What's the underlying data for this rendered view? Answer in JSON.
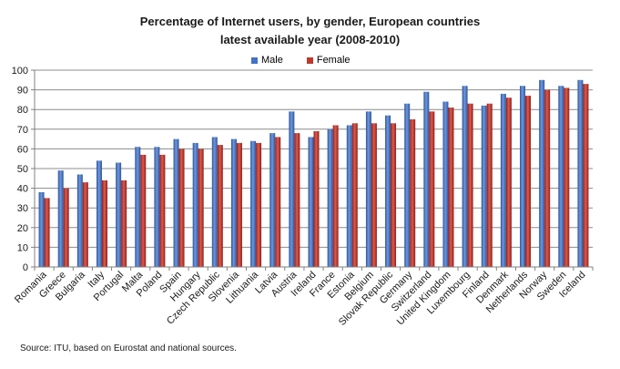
{
  "chart_data": {
    "type": "bar",
    "title_line1": "Percentage of Internet users, by gender, European countries",
    "title_line2": "latest available year (2008-2010)",
    "categories": [
      "Romania",
      "Greece",
      "Bulgaria",
      "Italy",
      "Portugal",
      "Malta",
      "Poland",
      "Spain",
      "Hungary",
      "Czech Republic",
      "Slovenia",
      "Lithuania",
      "Latvia",
      "Austria",
      "Ireland",
      "France",
      "Estonia",
      "Belgium",
      "Slovak Republic",
      "Germany",
      "Switzerland",
      "United Kingdom",
      "Luxembourg",
      "Finland",
      "Denmark",
      "Netherlands",
      "Norway",
      "Sweden",
      "Iceland"
    ],
    "series": [
      {
        "name": "Male",
        "color": "#4472c4",
        "values": [
          38,
          49,
          47,
          54,
          53,
          61,
          61,
          65,
          63,
          66,
          65,
          64,
          68,
          79,
          66,
          70,
          72,
          79,
          77,
          83,
          89,
          84,
          92,
          82,
          88,
          92,
          95,
          92,
          95
        ]
      },
      {
        "name": "Female",
        "color": "#c0392b",
        "values": [
          35,
          40,
          43,
          44,
          44,
          57,
          57,
          60,
          60,
          62,
          63,
          63,
          66,
          68,
          69,
          72,
          73,
          73,
          73,
          75,
          79,
          81,
          83,
          83,
          86,
          87,
          90,
          91,
          93
        ]
      }
    ],
    "ylim": [
      0,
      100
    ],
    "yticks": [
      0,
      10,
      20,
      30,
      40,
      50,
      60,
      70,
      80,
      90,
      100
    ],
    "grid": true,
    "legend_position": "top"
  },
  "source": "Source: ITU, based on Eurostat and national sources."
}
